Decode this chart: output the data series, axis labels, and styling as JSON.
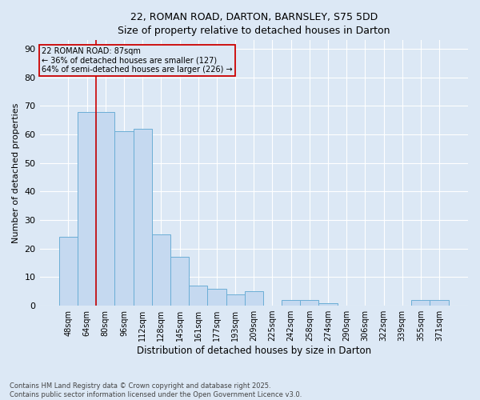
{
  "title_line1": "22, ROMAN ROAD, DARTON, BARNSLEY, S75 5DD",
  "title_line2": "Size of property relative to detached houses in Darton",
  "xlabel": "Distribution of detached houses by size in Darton",
  "ylabel": "Number of detached properties",
  "footnote": "Contains HM Land Registry data © Crown copyright and database right 2025.\nContains public sector information licensed under the Open Government Licence v3.0.",
  "categories": [
    "48sqm",
    "64sqm",
    "80sqm",
    "96sqm",
    "112sqm",
    "128sqm",
    "145sqm",
    "161sqm",
    "177sqm",
    "193sqm",
    "209sqm",
    "225sqm",
    "242sqm",
    "258sqm",
    "274sqm",
    "290sqm",
    "306sqm",
    "322sqm",
    "339sqm",
    "355sqm",
    "371sqm"
  ],
  "values": [
    24,
    68,
    68,
    61,
    62,
    25,
    17,
    7,
    6,
    4,
    5,
    0,
    2,
    2,
    1,
    0,
    0,
    0,
    0,
    2,
    2
  ],
  "bar_color": "#c5d9f0",
  "bar_edge_color": "#6baed6",
  "background_color": "#dce8f5",
  "grid_color": "#c8d8eb",
  "red_line_x": 1.5,
  "red_line_label": "22 ROMAN ROAD: 87sqm",
  "annotation_line2": "← 36% of detached houses are smaller (127)",
  "annotation_line3": "64% of semi-detached houses are larger (226) →",
  "ylim": [
    0,
    93
  ],
  "yticks": [
    0,
    10,
    20,
    30,
    40,
    50,
    60,
    70,
    80,
    90
  ]
}
